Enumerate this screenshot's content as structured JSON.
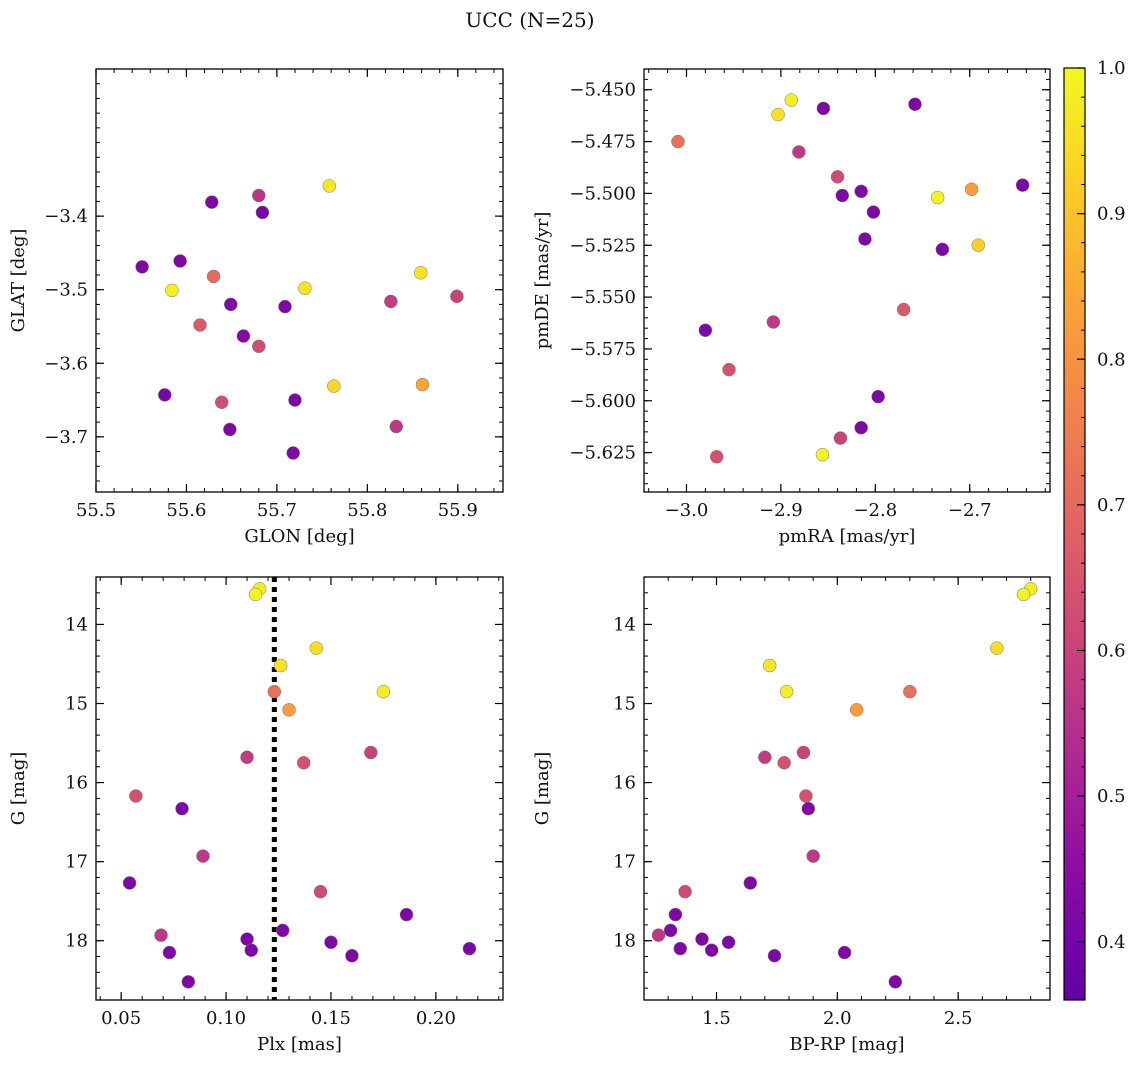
{
  "figure": {
    "suptitle": "UCC (N=25)"
  },
  "colorbar": {
    "cmap": "plasma",
    "vmin": 0.36,
    "vmax": 1.0,
    "ticks": [
      0.4,
      0.5,
      0.6,
      0.7,
      0.8,
      0.9,
      1.0
    ],
    "tick_labels": [
      "0.4",
      "0.5",
      "0.6",
      "0.7",
      "0.8",
      "0.9",
      "1.0"
    ]
  },
  "chart_data": [
    {
      "type": "scatter",
      "id": "glon-glat",
      "xlabel": "GLON [deg]",
      "ylabel": "GLAT [deg]",
      "xlim": [
        55.5,
        55.95
      ],
      "ylim": [
        -3.775,
        -3.2
      ],
      "xticks": [
        55.5,
        55.6,
        55.7,
        55.8,
        55.9
      ],
      "xtick_labels": [
        "55.5",
        "55.6",
        "55.7",
        "55.8",
        "55.9"
      ],
      "yticks": [
        -3.4,
        -3.5,
        -3.6,
        -3.7
      ],
      "ytick_labels": [
        "−3.4",
        "−3.5",
        "−3.6",
        "−3.7"
      ],
      "invert_y": false,
      "points": [
        {
          "x": 55.68,
          "y": -3.372,
          "c": 0.56
        },
        {
          "x": 55.758,
          "y": -3.359,
          "c": 0.97
        },
        {
          "x": 55.628,
          "y": -3.381,
          "c": 0.42
        },
        {
          "x": 55.684,
          "y": -3.395,
          "c": 0.41
        },
        {
          "x": 55.551,
          "y": -3.469,
          "c": 0.42
        },
        {
          "x": 55.593,
          "y": -3.461,
          "c": 0.42
        },
        {
          "x": 55.63,
          "y": -3.482,
          "c": 0.7
        },
        {
          "x": 55.584,
          "y": -3.501,
          "c": 0.98
        },
        {
          "x": 55.731,
          "y": -3.498,
          "c": 0.96
        },
        {
          "x": 55.859,
          "y": -3.477,
          "c": 0.96
        },
        {
          "x": 55.899,
          "y": -3.509,
          "c": 0.6
        },
        {
          "x": 55.826,
          "y": -3.516,
          "c": 0.58
        },
        {
          "x": 55.649,
          "y": -3.52,
          "c": 0.42
        },
        {
          "x": 55.709,
          "y": -3.523,
          "c": 0.42
        },
        {
          "x": 55.615,
          "y": -3.548,
          "c": 0.66
        },
        {
          "x": 55.663,
          "y": -3.563,
          "c": 0.43
        },
        {
          "x": 55.68,
          "y": -3.577,
          "c": 0.63
        },
        {
          "x": 55.763,
          "y": -3.631,
          "c": 0.94
        },
        {
          "x": 55.861,
          "y": -3.629,
          "c": 0.84
        },
        {
          "x": 55.576,
          "y": -3.643,
          "c": 0.41
        },
        {
          "x": 55.639,
          "y": -3.653,
          "c": 0.63
        },
        {
          "x": 55.72,
          "y": -3.65,
          "c": 0.41
        },
        {
          "x": 55.832,
          "y": -3.686,
          "c": 0.57
        },
        {
          "x": 55.648,
          "y": -3.69,
          "c": 0.42
        },
        {
          "x": 55.718,
          "y": -3.722,
          "c": 0.42
        }
      ]
    },
    {
      "type": "scatter",
      "id": "pmra-pmde",
      "xlabel": "pmRA [mas/yr]",
      "ylabel": "pmDE [mas/yr]",
      "xlim": [
        -3.045,
        -2.615
      ],
      "ylim": [
        -5.644,
        -5.44
      ],
      "xticks": [
        -3.0,
        -2.9,
        -2.8,
        -2.7
      ],
      "xtick_labels": [
        "−3.0",
        "−2.9",
        "−2.8",
        "−2.7"
      ],
      "yticks": [
        -5.45,
        -5.475,
        -5.5,
        -5.525,
        -5.55,
        -5.575,
        -5.6,
        -5.625
      ],
      "ytick_labels": [
        "−5.450",
        "−5.475",
        "−5.500",
        "−5.525",
        "−5.550",
        "−5.575",
        "−5.600",
        "−5.625"
      ],
      "invert_y": false,
      "points": [
        {
          "x": -2.889,
          "y": -5.455,
          "c": 0.98
        },
        {
          "x": -2.903,
          "y": -5.462,
          "c": 0.96
        },
        {
          "x": -2.855,
          "y": -5.459,
          "c": 0.42
        },
        {
          "x": -2.758,
          "y": -5.457,
          "c": 0.42
        },
        {
          "x": -3.009,
          "y": -5.475,
          "c": 0.72
        },
        {
          "x": -2.881,
          "y": -5.48,
          "c": 0.57
        },
        {
          "x": -2.84,
          "y": -5.492,
          "c": 0.62
        },
        {
          "x": -2.815,
          "y": -5.499,
          "c": 0.42
        },
        {
          "x": -2.835,
          "y": -5.501,
          "c": 0.42
        },
        {
          "x": -2.698,
          "y": -5.498,
          "c": 0.82
        },
        {
          "x": -2.644,
          "y": -5.496,
          "c": 0.41
        },
        {
          "x": -2.734,
          "y": -5.502,
          "c": 0.99
        },
        {
          "x": -2.802,
          "y": -5.509,
          "c": 0.42
        },
        {
          "x": -2.811,
          "y": -5.522,
          "c": 0.42
        },
        {
          "x": -2.729,
          "y": -5.527,
          "c": 0.42
        },
        {
          "x": -2.691,
          "y": -5.525,
          "c": 0.92
        },
        {
          "x": -2.77,
          "y": -5.556,
          "c": 0.66
        },
        {
          "x": -2.908,
          "y": -5.562,
          "c": 0.57
        },
        {
          "x": -2.98,
          "y": -5.566,
          "c": 0.42
        },
        {
          "x": -2.955,
          "y": -5.585,
          "c": 0.64
        },
        {
          "x": -2.797,
          "y": -5.598,
          "c": 0.42
        },
        {
          "x": -2.815,
          "y": -5.613,
          "c": 0.42
        },
        {
          "x": -2.837,
          "y": -5.618,
          "c": 0.6
        },
        {
          "x": -2.856,
          "y": -5.626,
          "c": 0.99
        },
        {
          "x": -2.968,
          "y": -5.627,
          "c": 0.64
        }
      ]
    },
    {
      "type": "scatter",
      "id": "plx-g",
      "xlabel": "Plx [mas]",
      "ylabel": "G [mag]",
      "xlim": [
        0.038,
        0.232
      ],
      "ylim": [
        18.75,
        13.4
      ],
      "xticks": [
        0.05,
        0.1,
        0.15,
        0.2
      ],
      "xtick_labels": [
        "0.05",
        "0.10",
        "0.15",
        "0.20"
      ],
      "yticks": [
        14,
        15,
        16,
        17,
        18
      ],
      "ytick_labels": [
        "14",
        "15",
        "16",
        "17",
        "18"
      ],
      "invert_y": true,
      "vline": {
        "x": 0.123,
        "style": "dotted"
      },
      "points": [
        {
          "x": 0.116,
          "y": 13.55,
          "c": 0.98
        },
        {
          "x": 0.114,
          "y": 13.62,
          "c": 0.99
        },
        {
          "x": 0.143,
          "y": 14.3,
          "c": 0.95
        },
        {
          "x": 0.126,
          "y": 14.52,
          "c": 0.96
        },
        {
          "x": 0.175,
          "y": 14.85,
          "c": 0.98
        },
        {
          "x": 0.123,
          "y": 14.85,
          "c": 0.72
        },
        {
          "x": 0.13,
          "y": 15.08,
          "c": 0.82
        },
        {
          "x": 0.169,
          "y": 15.62,
          "c": 0.6
        },
        {
          "x": 0.11,
          "y": 15.68,
          "c": 0.58
        },
        {
          "x": 0.137,
          "y": 15.75,
          "c": 0.64
        },
        {
          "x": 0.057,
          "y": 16.17,
          "c": 0.64
        },
        {
          "x": 0.079,
          "y": 16.33,
          "c": 0.42
        },
        {
          "x": 0.089,
          "y": 16.93,
          "c": 0.57
        },
        {
          "x": 0.054,
          "y": 17.27,
          "c": 0.42
        },
        {
          "x": 0.145,
          "y": 17.38,
          "c": 0.62
        },
        {
          "x": 0.186,
          "y": 17.67,
          "c": 0.42
        },
        {
          "x": 0.127,
          "y": 17.87,
          "c": 0.42
        },
        {
          "x": 0.069,
          "y": 17.93,
          "c": 0.57
        },
        {
          "x": 0.11,
          "y": 17.98,
          "c": 0.42
        },
        {
          "x": 0.15,
          "y": 18.02,
          "c": 0.42
        },
        {
          "x": 0.216,
          "y": 18.1,
          "c": 0.42
        },
        {
          "x": 0.112,
          "y": 18.12,
          "c": 0.42
        },
        {
          "x": 0.073,
          "y": 18.15,
          "c": 0.42
        },
        {
          "x": 0.16,
          "y": 18.19,
          "c": 0.42
        },
        {
          "x": 0.082,
          "y": 18.52,
          "c": 0.42
        }
      ]
    },
    {
      "type": "scatter",
      "id": "bprp-g",
      "xlabel": "BP-RP [mag]",
      "ylabel": "G [mag]",
      "xlim": [
        1.2,
        2.88
      ],
      "ylim": [
        18.75,
        13.4
      ],
      "xticks": [
        1.5,
        2.0,
        2.5
      ],
      "xtick_labels": [
        "1.5",
        "2.0",
        "2.5"
      ],
      "yticks": [
        14,
        15,
        16,
        17,
        18
      ],
      "ytick_labels": [
        "14",
        "15",
        "16",
        "17",
        "18"
      ],
      "invert_y": true,
      "points": [
        {
          "x": 2.8,
          "y": 13.55,
          "c": 0.98
        },
        {
          "x": 2.77,
          "y": 13.62,
          "c": 0.99
        },
        {
          "x": 2.66,
          "y": 14.3,
          "c": 0.95
        },
        {
          "x": 1.72,
          "y": 14.52,
          "c": 0.96
        },
        {
          "x": 1.79,
          "y": 14.85,
          "c": 0.98
        },
        {
          "x": 2.3,
          "y": 14.85,
          "c": 0.72
        },
        {
          "x": 2.08,
          "y": 15.08,
          "c": 0.82
        },
        {
          "x": 1.86,
          "y": 15.62,
          "c": 0.6
        },
        {
          "x": 1.7,
          "y": 15.68,
          "c": 0.58
        },
        {
          "x": 1.78,
          "y": 15.75,
          "c": 0.64
        },
        {
          "x": 1.87,
          "y": 16.17,
          "c": 0.64
        },
        {
          "x": 1.88,
          "y": 16.33,
          "c": 0.42
        },
        {
          "x": 1.9,
          "y": 16.93,
          "c": 0.57
        },
        {
          "x": 1.64,
          "y": 17.27,
          "c": 0.42
        },
        {
          "x": 1.37,
          "y": 17.38,
          "c": 0.62
        },
        {
          "x": 1.33,
          "y": 17.67,
          "c": 0.42
        },
        {
          "x": 1.31,
          "y": 17.87,
          "c": 0.42
        },
        {
          "x": 1.26,
          "y": 17.93,
          "c": 0.57
        },
        {
          "x": 1.44,
          "y": 17.98,
          "c": 0.42
        },
        {
          "x": 1.55,
          "y": 18.02,
          "c": 0.42
        },
        {
          "x": 1.35,
          "y": 18.1,
          "c": 0.42
        },
        {
          "x": 1.48,
          "y": 18.12,
          "c": 0.42
        },
        {
          "x": 2.03,
          "y": 18.15,
          "c": 0.42
        },
        {
          "x": 1.74,
          "y": 18.19,
          "c": 0.42
        },
        {
          "x": 2.24,
          "y": 18.52,
          "c": 0.42
        }
      ]
    }
  ]
}
